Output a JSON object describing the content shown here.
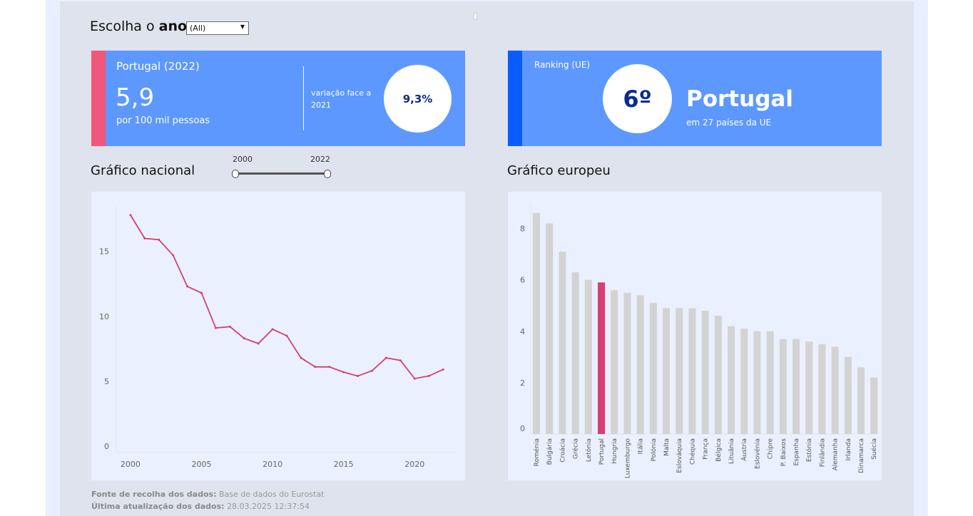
{
  "filter": {
    "label_prefix": "Escolha o",
    "label_bold": "ano",
    "label_suffix": ":",
    "selected": "(All)"
  },
  "kpi_national": {
    "title": "Portugal (2022)",
    "value": "5,9",
    "unit": "por 100 mil pessoas",
    "change_label": "variação face a 2021",
    "change_value": "9,3%"
  },
  "kpi_ranking": {
    "title": "Ranking (UE)",
    "rank": "6º",
    "country": "Portugal",
    "subtitle": "em 27 países da UE"
  },
  "national_section": {
    "title": "Gráfico nacional",
    "slider_start": "2000",
    "slider_end": "2022"
  },
  "european_section": {
    "title": "Gráfico europeu"
  },
  "footer": {
    "source_label": "Fonte de recolha dos dados:",
    "source_value": "Base de dados do Eurostat",
    "updated_label": "Última atualização dos dados:",
    "updated_value": "28.03.2025 12:37:54"
  },
  "colors": {
    "line": "#d63f72",
    "highlight_bar": "#d63f72",
    "bar": "#d3d3d3",
    "accent_blue": "#5c98ff"
  },
  "chart_data": [
    {
      "type": "line",
      "x": [
        2000,
        2001,
        2002,
        2003,
        2004,
        2005,
        2006,
        2007,
        2008,
        2009,
        2010,
        2011,
        2012,
        2013,
        2014,
        2015,
        2016,
        2017,
        2018,
        2019,
        2020,
        2021,
        2022
      ],
      "series": [
        {
          "values": [
            17.8,
            16.0,
            15.9,
            14.7,
            12.3,
            11.8,
            9.1,
            9.2,
            8.3,
            7.9,
            9.0,
            8.5,
            6.8,
            6.1,
            6.1,
            5.7,
            5.4,
            5.8,
            6.8,
            6.6,
            5.2,
            5.4,
            5.9
          ]
        }
      ],
      "xticks": [
        2000,
        2005,
        2010,
        2015,
        2020
      ],
      "yticks": [
        0,
        5,
        10,
        15
      ],
      "xlim": [
        1999,
        2023
      ],
      "ylim": [
        -0.5,
        18.5
      ],
      "grid": false
    },
    {
      "type": "bar",
      "categories": [
        "Roménia",
        "Bulgária",
        "Croácia",
        "Grécia",
        "Letónia",
        "Portugal",
        "Hungria",
        "Luxemburgo",
        "Itália",
        "Polónia",
        "Malta",
        "Eslováquia",
        "Chéquia",
        "França",
        "Bélgica",
        "Lituânia",
        "Áustria",
        "Eslovénia",
        "Chipre",
        "P. Baixos",
        "Espanha",
        "Estónia",
        "Finlândia",
        "Alemanha",
        "Irlanda",
        "Dinamarca",
        "Suécia"
      ],
      "values": [
        8.6,
        8.2,
        7.1,
        6.3,
        6.0,
        5.9,
        5.6,
        5.5,
        5.4,
        5.1,
        4.9,
        4.9,
        4.9,
        4.8,
        4.6,
        4.2,
        4.1,
        4.0,
        4.0,
        3.7,
        3.7,
        3.6,
        3.5,
        3.4,
        3.0,
        2.6,
        2.2
      ],
      "highlight": "Portugal",
      "yticks": [
        0,
        2,
        4,
        6,
        8
      ],
      "ylim": [
        0,
        8.6
      ],
      "grid": false
    }
  ]
}
